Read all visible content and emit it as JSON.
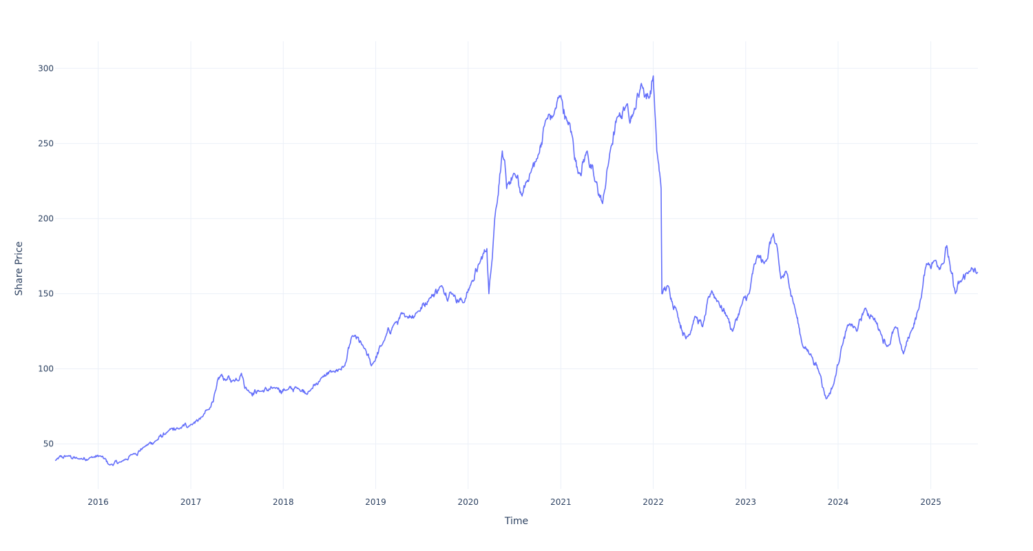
{
  "chart_data": {
    "type": "line",
    "xlabel": "Time",
    "ylabel": "Share Price",
    "x_range": [
      "2015-07-15",
      "2025-07-06"
    ],
    "ylim": [
      20,
      318
    ],
    "y_ticks": [
      50,
      100,
      150,
      200,
      250,
      300
    ],
    "x_ticks": [
      "2016",
      "2017",
      "2018",
      "2019",
      "2020",
      "2021",
      "2022",
      "2023",
      "2024",
      "2025"
    ],
    "grid": true,
    "line_color": "#636efa",
    "series": [
      {
        "x": [
          "2015-07-15",
          "2015-09-01",
          "2015-10-15",
          "2015-12-01",
          "2016-01-10",
          "2016-02-15",
          "2016-04-01",
          "2016-05-15",
          "2016-07-01",
          "2016-08-15",
          "2016-10-01",
          "2016-11-15",
          "2017-01-01",
          "2017-02-15",
          "2017-03-15",
          "2017-04-10",
          "2017-05-01",
          "2017-05-15",
          "2017-06-15",
          "2017-07-20",
          "2017-08-10",
          "2017-10-01",
          "2017-12-01",
          "2018-01-15",
          "2018-03-01",
          "2018-04-15",
          "2018-06-01",
          "2018-07-15",
          "2018-09-01",
          "2018-10-01",
          "2018-11-15",
          "2018-12-15",
          "2019-02-01",
          "2019-03-15",
          "2019-05-01",
          "2019-06-15",
          "2019-08-01",
          "2019-09-15",
          "2019-11-01",
          "2019-12-15",
          "2020-01-15",
          "2020-02-15",
          "2020-03-15",
          "2020-03-23",
          "2020-04-15",
          "2020-05-15",
          "2020-06-01",
          "2020-07-01",
          "2020-08-01",
          "2020-09-01",
          "2020-10-01",
          "2020-11-01",
          "2020-12-01",
          "2021-01-01",
          "2021-01-25",
          "2021-02-15",
          "2021-03-10",
          "2021-04-15",
          "2021-05-15",
          "2021-06-15",
          "2021-07-15",
          "2021-08-15",
          "2021-09-15",
          "2021-10-15",
          "2021-11-15",
          "2021-12-15",
          "2022-01-01",
          "2022-01-15",
          "2022-02-01",
          "2022-02-04",
          "2022-03-01",
          "2022-04-01",
          "2022-05-10",
          "2022-06-15",
          "2022-07-15",
          "2022-08-20",
          "2022-09-15",
          "2022-10-20",
          "2022-11-10",
          "2022-12-15",
          "2023-01-15",
          "2023-02-15",
          "2023-03-15",
          "2023-04-20",
          "2023-05-20",
          "2023-06-15",
          "2023-07-15",
          "2023-08-15",
          "2023-09-15",
          "2023-10-25",
          "2023-11-15",
          "2023-12-15",
          "2024-01-15",
          "2024-02-15",
          "2024-03-15",
          "2024-04-15",
          "2024-05-15",
          "2024-06-15",
          "2024-07-15",
          "2024-08-15",
          "2024-09-15",
          "2024-10-15",
          "2024-11-15",
          "2024-12-15",
          "2025-01-15",
          "2025-02-15",
          "2025-03-05",
          "2025-03-20",
          "2025-04-08",
          "2025-05-01",
          "2025-06-01",
          "2025-07-06"
        ],
        "y": [
          39,
          42,
          40,
          41,
          42,
          36,
          38,
          43,
          48,
          52,
          58,
          60,
          63,
          68,
          73,
          86,
          96,
          93,
          92,
          97,
          86,
          85,
          87,
          86,
          87,
          85,
          94,
          98,
          102,
          122,
          114,
          102,
          118,
          130,
          135,
          138,
          147,
          155,
          150,
          144,
          158,
          170,
          180,
          150,
          200,
          245,
          220,
          230,
          215,
          230,
          240,
          265,
          268,
          282,
          265,
          255,
          230,
          245,
          225,
          210,
          245,
          268,
          275,
          270,
          290,
          280,
          295,
          245,
          220,
          150,
          155,
          140,
          120,
          135,
          128,
          152,
          145,
          135,
          125,
          142,
          150,
          175,
          170,
          190,
          160,
          163,
          140,
          115,
          110,
          95,
          80,
          90,
          115,
          130,
          125,
          140,
          135,
          125,
          115,
          128,
          110,
          125,
          140,
          170,
          172,
          170,
          182,
          165,
          150,
          158,
          165,
          164
        ],
        "volatility": 2.2
      }
    ]
  }
}
